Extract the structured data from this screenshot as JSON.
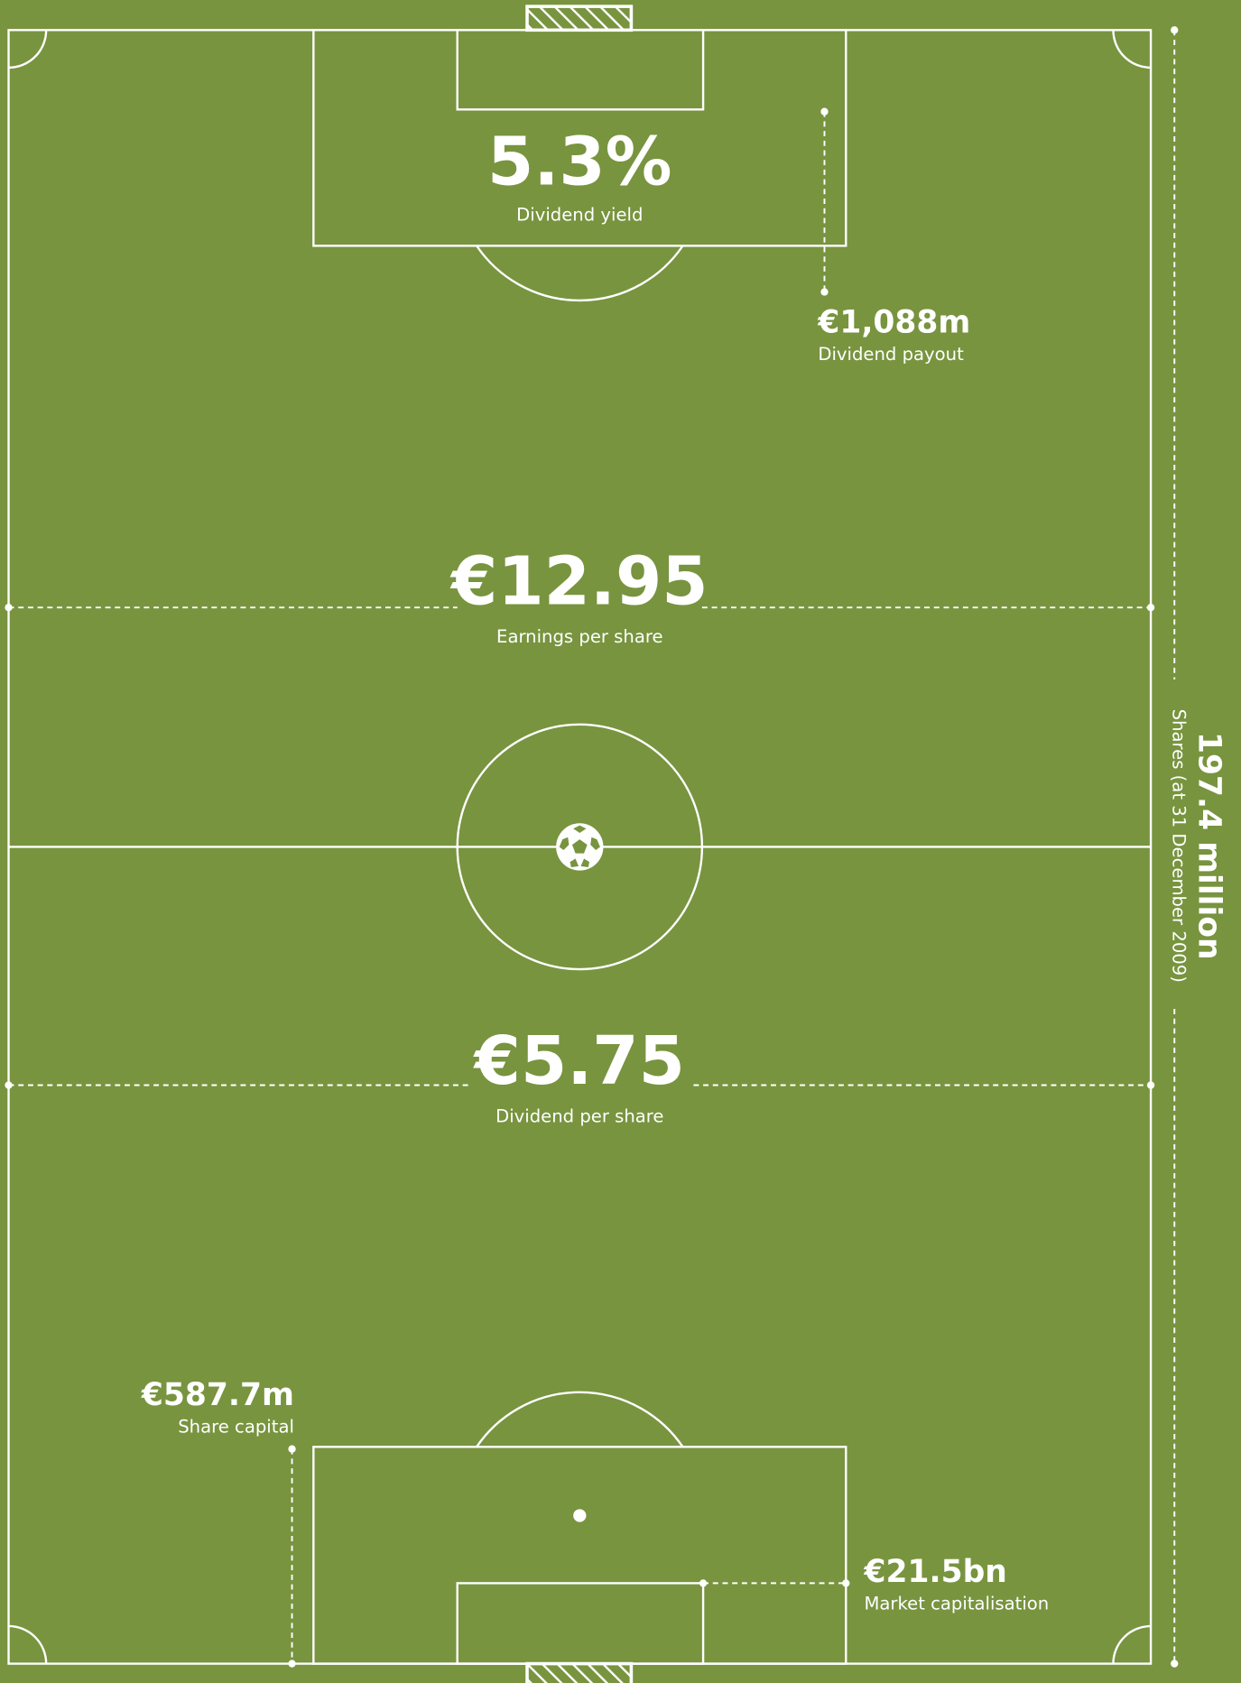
{
  "stats": {
    "dividend_yield": {
      "value": "5.3%",
      "label": "Dividend yield"
    },
    "dividend_payout": {
      "value": "€1,088m",
      "label": "Dividend payout"
    },
    "earnings_per_share": {
      "value": "€12.95",
      "label": "Earnings per share"
    },
    "dividend_per_share": {
      "value": "€5.75",
      "label": "Dividend per share"
    },
    "share_capital": {
      "value": "€587.7m",
      "label": "Share capital"
    },
    "market_capitalisation": {
      "value": "€21.5bn",
      "label": "Market capitalisation"
    },
    "shares": {
      "value": "197.4 million",
      "label": "Shares (at 31 December 2009)"
    }
  }
}
